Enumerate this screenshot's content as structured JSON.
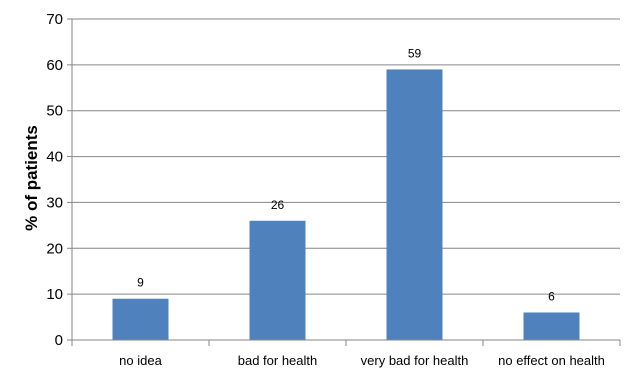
{
  "chart_data": {
    "type": "bar",
    "categories": [
      "no idea",
      "bad for health",
      "very bad for health",
      "no effect on health"
    ],
    "values": [
      9,
      26,
      59,
      6
    ],
    "data_labels": [
      "9",
      "26",
      "59",
      "6"
    ],
    "title": "",
    "xlabel": "",
    "ylabel": "% of patients",
    "ylim": [
      0,
      70
    ],
    "yticks": [
      "0",
      "10",
      "20",
      "30",
      "40",
      "50",
      "60",
      "70"
    ],
    "grid": true,
    "legend": "none",
    "bar_color": "#4F81BD",
    "grid_color": "#868686"
  }
}
